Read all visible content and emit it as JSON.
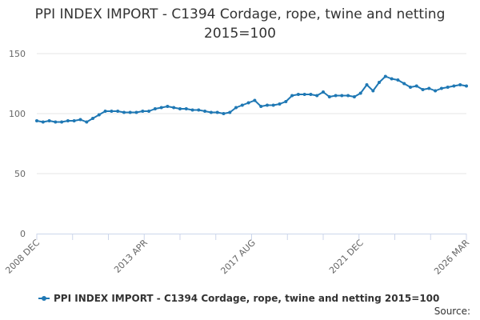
{
  "chart_data": {
    "type": "line",
    "title": "PPI INDEX IMPORT - C1394 Cordage, rope, twine and netting 2015=100",
    "xlabel": "",
    "ylabel": "",
    "x_range": [
      "2008-12",
      "2026-03"
    ],
    "ylim": [
      0,
      150
    ],
    "y_ticks": [
      "0",
      "50",
      "100",
      "150"
    ],
    "x_ticks": [
      {
        "label": "2008 DEC",
        "date": "2008-12"
      },
      {
        "label": "2013 APR",
        "date": "2013-04"
      },
      {
        "label": "2017 AUG",
        "date": "2017-08"
      },
      {
        "label": "2021 DEC",
        "date": "2021-12"
      },
      {
        "label": "2026 MAR",
        "date": "2026-03"
      }
    ],
    "grid": "horizontal",
    "legend_position": "bottom",
    "colors": {
      "series": "#1f78b4",
      "grid": "#e6e6e6",
      "axis": "#ccd6eb",
      "text": "#333333"
    },
    "series": [
      {
        "name": "PPI INDEX IMPORT - C1394 Cordage, rope, twine and netting 2015=100",
        "points": [
          [
            "2008-12",
            94
          ],
          [
            "2009-03",
            93
          ],
          [
            "2009-06",
            94
          ],
          [
            "2009-09",
            93
          ],
          [
            "2009-12",
            93
          ],
          [
            "2010-03",
            94
          ],
          [
            "2010-06",
            94
          ],
          [
            "2010-09",
            95
          ],
          [
            "2010-12",
            93
          ],
          [
            "2011-03",
            96
          ],
          [
            "2011-06",
            99
          ],
          [
            "2011-09",
            102
          ],
          [
            "2011-12",
            102
          ],
          [
            "2012-03",
            102
          ],
          [
            "2012-06",
            101
          ],
          [
            "2012-09",
            101
          ],
          [
            "2012-12",
            101
          ],
          [
            "2013-03",
            102
          ],
          [
            "2013-06",
            102
          ],
          [
            "2013-09",
            104
          ],
          [
            "2013-12",
            105
          ],
          [
            "2014-03",
            106
          ],
          [
            "2014-06",
            105
          ],
          [
            "2014-09",
            104
          ],
          [
            "2014-12",
            104
          ],
          [
            "2015-03",
            103
          ],
          [
            "2015-06",
            103
          ],
          [
            "2015-09",
            102
          ],
          [
            "2015-12",
            101
          ],
          [
            "2016-03",
            101
          ],
          [
            "2016-06",
            100
          ],
          [
            "2016-09",
            101
          ],
          [
            "2016-12",
            105
          ],
          [
            "2017-03",
            107
          ],
          [
            "2017-06",
            109
          ],
          [
            "2017-09",
            111
          ],
          [
            "2017-12",
            106
          ],
          [
            "2018-03",
            107
          ],
          [
            "2018-06",
            107
          ],
          [
            "2018-09",
            108
          ],
          [
            "2018-12",
            110
          ],
          [
            "2019-03",
            115
          ],
          [
            "2019-06",
            116
          ],
          [
            "2019-09",
            116
          ],
          [
            "2019-12",
            116
          ],
          [
            "2020-03",
            115
          ],
          [
            "2020-06",
            118
          ],
          [
            "2020-09",
            114
          ],
          [
            "2020-12",
            115
          ],
          [
            "2021-03",
            115
          ],
          [
            "2021-06",
            115
          ],
          [
            "2021-09",
            114
          ],
          [
            "2021-12",
            117
          ],
          [
            "2022-03",
            124
          ],
          [
            "2022-06",
            119
          ],
          [
            "2022-09",
            126
          ],
          [
            "2022-12",
            131
          ],
          [
            "2023-03",
            129
          ],
          [
            "2023-06",
            128
          ],
          [
            "2023-09",
            125
          ],
          [
            "2023-12",
            122
          ],
          [
            "2024-03",
            123
          ],
          [
            "2024-06",
            120
          ],
          [
            "2024-09",
            121
          ],
          [
            "2024-12",
            119
          ],
          [
            "2025-03",
            121
          ],
          [
            "2025-06",
            122
          ],
          [
            "2025-09",
            123
          ],
          [
            "2025-12",
            124
          ],
          [
            "2026-03",
            123
          ]
        ]
      }
    ]
  },
  "legend": {
    "label": "PPI INDEX IMPORT - C1394 Cordage, rope, twine and netting 2015=100"
  },
  "source": {
    "label": "Source:"
  }
}
